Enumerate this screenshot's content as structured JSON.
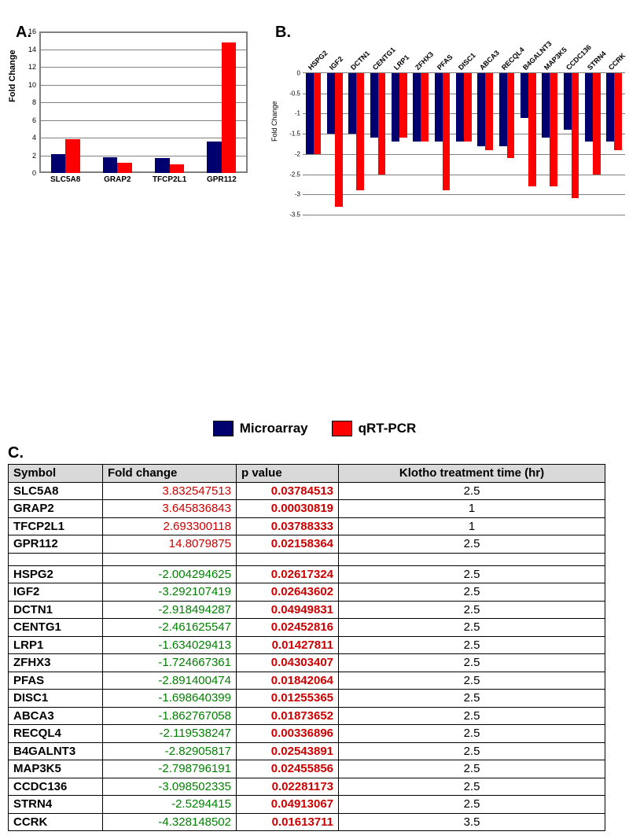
{
  "colors": {
    "microarray": "#00006f",
    "qrtpcr": "#ff0000",
    "grid": "#808080",
    "header_bg": "#d9d9d9",
    "up_text": "#cc0000",
    "down_text": "#008000",
    "black": "#000000"
  },
  "panel_labels": {
    "a": "A.",
    "b": "B.",
    "c": "C."
  },
  "legend": {
    "microarray": "Microarray",
    "qrtpcr": "qRT-PCR"
  },
  "chart_a": {
    "type": "bar",
    "ylabel": "Fold Change",
    "ylim": [
      0,
      16
    ],
    "ytick_step": 2,
    "categories": [
      "SLC5A8",
      "GRAP2",
      "TFCP2L1",
      "GPR112"
    ],
    "series": {
      "microarray": [
        2.1,
        1.8,
        1.7,
        3.6
      ],
      "qrtpcr": [
        3.8,
        1.2,
        1.0,
        14.8
      ]
    }
  },
  "chart_b": {
    "type": "bar",
    "ylabel": "Fold Change",
    "ylim": [
      -3.5,
      0
    ],
    "ytick_step": 0.5,
    "categories": [
      "HSPG2",
      "IGF2",
      "DCTN1",
      "CENTG1",
      "LRP1",
      "ZFHX3",
      "PFAS",
      "DISC1",
      "ABCA3",
      "RECQL4",
      "B4GALNT3",
      "MAP3K5",
      "CCDC136",
      "STRN4",
      "CCRK"
    ],
    "series": {
      "microarray": [
        -2.0,
        -1.5,
        -1.5,
        -1.6,
        -1.7,
        -1.7,
        -1.7,
        -1.7,
        -1.8,
        -1.8,
        -1.1,
        -1.6,
        -1.4,
        -1.7,
        -1.7
      ],
      "qrtpcr": [
        -2.0,
        -3.3,
        -2.9,
        -2.5,
        -1.6,
        -1.7,
        -2.9,
        -1.7,
        -1.9,
        -2.1,
        -2.8,
        -2.8,
        -3.1,
        -2.5,
        -1.9
      ]
    }
  },
  "table_c": {
    "columns": [
      "Symbol",
      "Fold change",
      "p value",
      "Klotho treatment time (hr)"
    ],
    "groups": [
      {
        "dir": "up",
        "rows": [
          {
            "sym": "SLC5A8",
            "fc": "3.832547513",
            "p": "0.03784513",
            "time": "2.5"
          },
          {
            "sym": "GRAP2",
            "fc": "3.645836843",
            "p": "0.00030819",
            "time": "1"
          },
          {
            "sym": "TFCP2L1",
            "fc": "2.693300118",
            "p": "0.03788333",
            "time": "1"
          },
          {
            "sym": "GPR112",
            "fc": "14.8079875",
            "p": "0.02158364",
            "time": "2.5"
          }
        ]
      },
      {
        "dir": "down",
        "rows": [
          {
            "sym": "HSPG2",
            "fc": "-2.004294625",
            "p": "0.02617324",
            "time": "2.5"
          },
          {
            "sym": "IGF2",
            "fc": "-3.292107419",
            "p": "0.02643602",
            "time": "2.5"
          },
          {
            "sym": "DCTN1",
            "fc": "-2.918494287",
            "p": "0.04949831",
            "time": "2.5"
          },
          {
            "sym": "CENTG1",
            "fc": "-2.461625547",
            "p": "0.02452816",
            "time": "2.5"
          },
          {
            "sym": "LRP1",
            "fc": "-1.634029413",
            "p": "0.01427811",
            "time": "2.5"
          },
          {
            "sym": "ZFHX3",
            "fc": "-1.724667361",
            "p": "0.04303407",
            "time": "2.5"
          },
          {
            "sym": "PFAS",
            "fc": "-2.891400474",
            "p": "0.01842064",
            "time": "2.5"
          },
          {
            "sym": "DISC1",
            "fc": "-1.698640399",
            "p": "0.01255365",
            "time": "2.5"
          },
          {
            "sym": "ABCA3",
            "fc": "-1.862767058",
            "p": "0.01873652",
            "time": "2.5"
          },
          {
            "sym": "RECQL4",
            "fc": "-2.119538247",
            "p": "0.00336896",
            "time": "2.5"
          },
          {
            "sym": "B4GALNT3",
            "fc": "-2.82905817",
            "p": "0.02543891",
            "time": "2.5"
          },
          {
            "sym": "MAP3K5",
            "fc": "-2.798796191",
            "p": "0.02455856",
            "time": "2.5"
          },
          {
            "sym": "CCDC136",
            "fc": "-3.098502335",
            "p": "0.02281173",
            "time": "2.5"
          },
          {
            "sym": "STRN4",
            "fc": "-2.5294415",
            "p": "0.04913067",
            "time": "2.5"
          },
          {
            "sym": "CCRK",
            "fc": "-4.328148502",
            "p": "0.01613711",
            "time": "3.5"
          }
        ]
      }
    ]
  }
}
